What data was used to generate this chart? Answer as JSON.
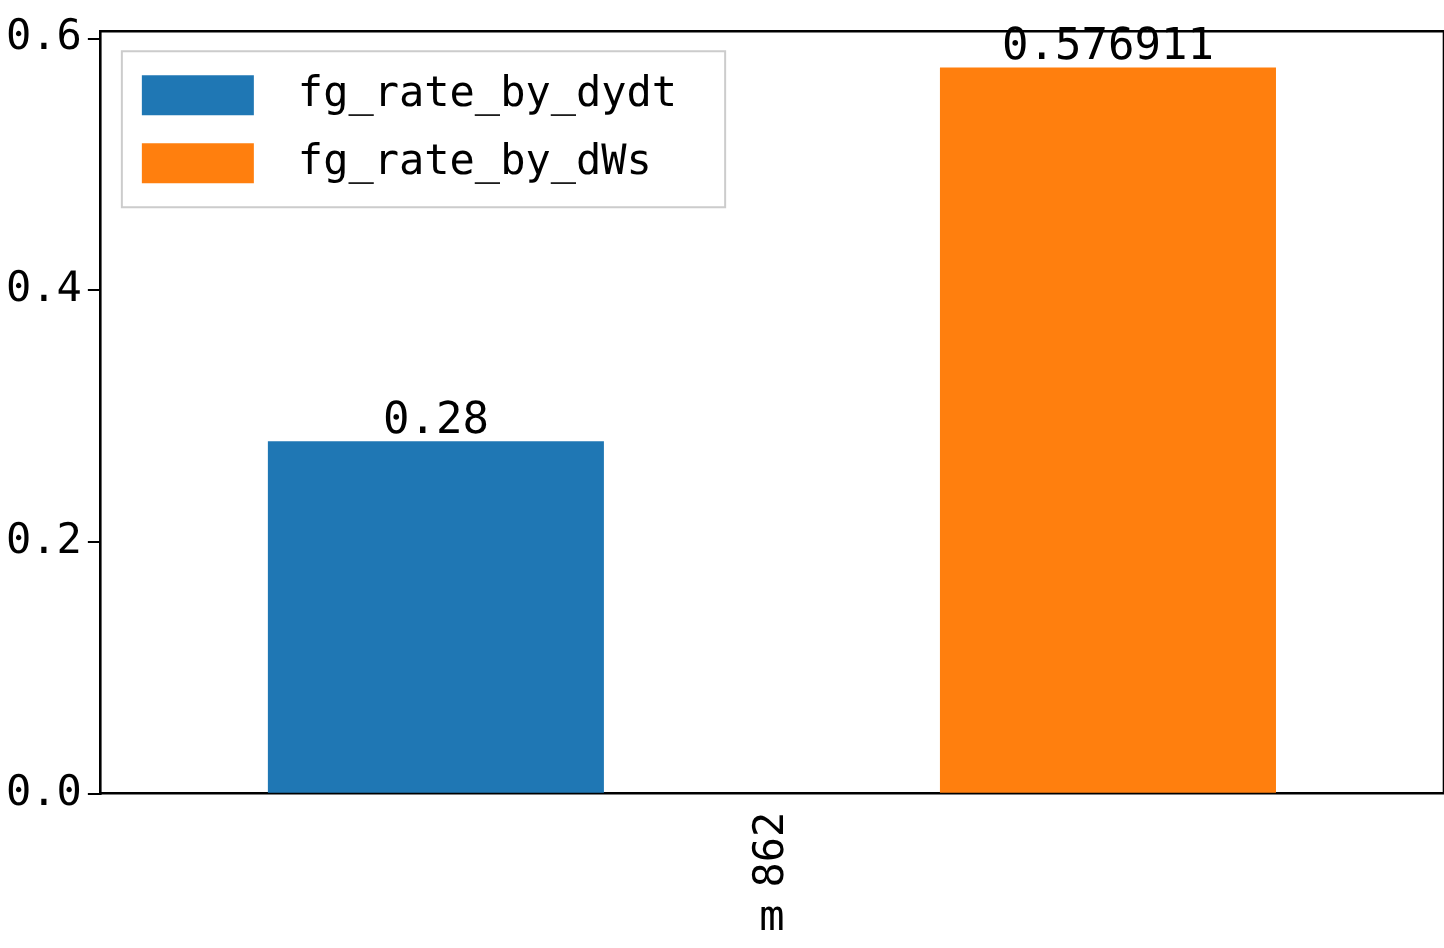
{
  "chart_data": {
    "type": "bar",
    "categories": [
      "862"
    ],
    "xlabel": "m",
    "series": [
      {
        "name": "fg_rate_by_dydt",
        "color": "#1f77b4",
        "values": [
          0.28
        ]
      },
      {
        "name": "fg_rate_by_dWs",
        "color": "#ff7f0e",
        "values": [
          0.576911
        ]
      }
    ],
    "ylim": [
      0,
      0.6058
    ],
    "yticks": [
      {
        "value": 0,
        "label": "0.0"
      },
      0.2,
      0.4,
      0.6
    ],
    "data_labels": true,
    "legend": "top left",
    "grid": false
  }
}
